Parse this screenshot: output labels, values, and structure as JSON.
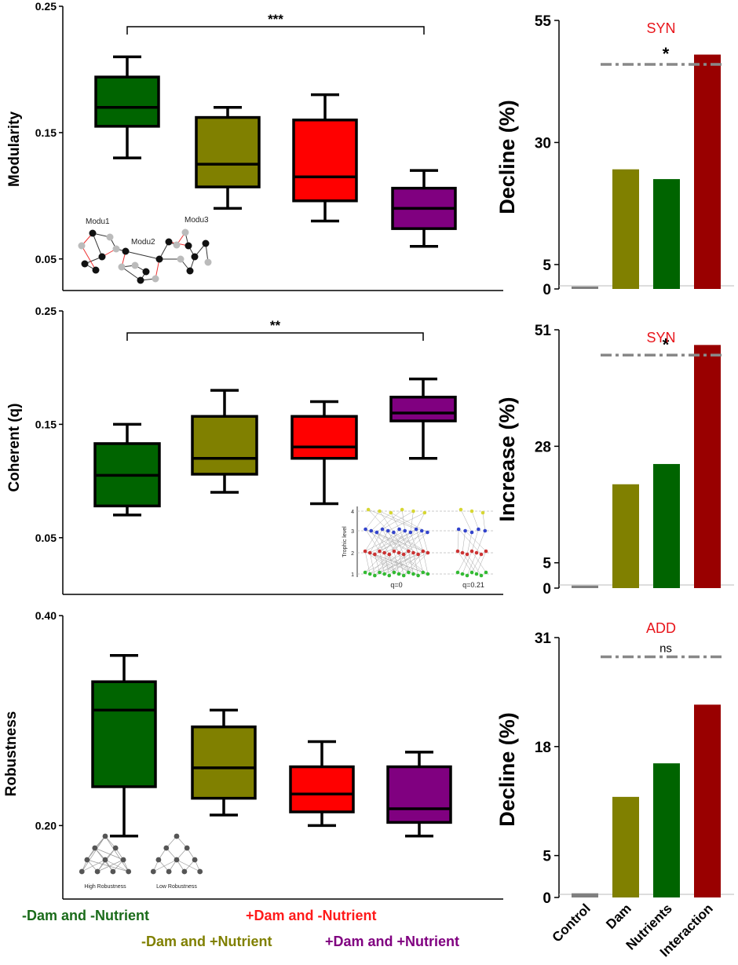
{
  "colors": {
    "control": "#006400",
    "dam": "#ff0000",
    "nutrient": "#808000",
    "interaction": "#800080",
    "bar_control": "#808080",
    "bar_dam": "#808000",
    "bar_nutrients": "#006400",
    "bar_interaction": "#990000",
    "annot_red": "#e8141a",
    "dash": "#888888"
  },
  "legend": {
    "items": [
      {
        "label": "-Dam and -Nutrient",
        "color": "#1a6b1a"
      },
      {
        "label": "+Dam and -Nutrient",
        "color": "#ff1a1a"
      },
      {
        "label": "-Dam and +Nutrient",
        "color": "#808000"
      },
      {
        "label": "+Dam and +Nutrient",
        "color": "#800080"
      }
    ]
  },
  "insets": {
    "modularity": {
      "labels": [
        "Modu1",
        "Modu2",
        "Modu3"
      ]
    },
    "coherence": {
      "ylabel": "Trophic level",
      "levels": [
        "4",
        "3",
        "2",
        "1"
      ],
      "labels": [
        "q=0",
        "q=0.21"
      ]
    },
    "robustness": {
      "labels": [
        "High Robustness",
        "Low Robustness"
      ]
    }
  },
  "chart_data": [
    {
      "type": "box",
      "ylabel": "Modularity",
      "ylim": [
        0.025,
        0.25
      ],
      "yticks": [
        "0.05",
        "0.15",
        "0.25"
      ],
      "groups": [
        {
          "name": "-Dam and -Nutrient",
          "color": "#006400",
          "min": 0.13,
          "q1": 0.155,
          "median": 0.17,
          "q3": 0.194,
          "max": 0.21
        },
        {
          "name": "-Dam and +Nutrient",
          "color": "#808000",
          "min": 0.09,
          "q1": 0.107,
          "median": 0.125,
          "q3": 0.162,
          "max": 0.17
        },
        {
          "name": "+Dam and -Nutrient",
          "color": "#ff0000",
          "min": 0.08,
          "q1": 0.096,
          "median": 0.115,
          "q3": 0.16,
          "max": 0.18
        },
        {
          "name": "+Dam and +Nutrient",
          "color": "#800080",
          "min": 0.06,
          "q1": 0.074,
          "median": 0.09,
          "q3": 0.106,
          "max": 0.12
        }
      ],
      "bracket": {
        "from": 0,
        "to": 3,
        "label": "***"
      }
    },
    {
      "type": "bar",
      "ylabel": "Decline (%)",
      "ylim": [
        0,
        55
      ],
      "yticks": [
        "0",
        "5",
        "30",
        "55"
      ],
      "categories": [
        "Control",
        "Dam",
        "Nutrients",
        "Interaction"
      ],
      "values": [
        0.5,
        24.5,
        22.5,
        48
      ],
      "annotation": "SYN",
      "significance": "*",
      "reference_line": 46
    },
    {
      "type": "box",
      "ylabel": "Coherent (q)",
      "ylim": [
        0.0,
        0.25
      ],
      "yticks": [
        "0.05",
        "0.15",
        "0.25"
      ],
      "groups": [
        {
          "name": "-Dam and -Nutrient",
          "color": "#006400",
          "min": 0.07,
          "q1": 0.078,
          "median": 0.105,
          "q3": 0.133,
          "max": 0.15
        },
        {
          "name": "-Dam and +Nutrient",
          "color": "#808000",
          "min": 0.09,
          "q1": 0.106,
          "median": 0.12,
          "q3": 0.157,
          "max": 0.18
        },
        {
          "name": "+Dam and -Nutrient",
          "color": "#ff0000",
          "min": 0.08,
          "q1": 0.12,
          "median": 0.13,
          "q3": 0.157,
          "max": 0.17
        },
        {
          "name": "+Dam and +Nutrient",
          "color": "#800080",
          "min": 0.12,
          "q1": 0.153,
          "median": 0.16,
          "q3": 0.174,
          "max": 0.19
        }
      ],
      "bracket": {
        "from": 0,
        "to": 3,
        "label": "**"
      }
    },
    {
      "type": "bar",
      "ylabel": "Increase (%)",
      "ylim": [
        0,
        51
      ],
      "yticks": [
        "0",
        "5",
        "28",
        "51"
      ],
      "categories": [
        "Control",
        "Dam",
        "Nutrients",
        "Interaction"
      ],
      "values": [
        0.5,
        20.5,
        24.5,
        48
      ],
      "annotation": "SYN",
      "significance": "*",
      "reference_line": 46
    },
    {
      "type": "box",
      "ylabel": "Robustness",
      "ylim": [
        0.13,
        0.4
      ],
      "yticks": [
        "0.20",
        "0.40"
      ],
      "groups": [
        {
          "name": "-Dam and -Nutrient",
          "color": "#006400",
          "min": 0.19,
          "q1": 0.237,
          "median": 0.31,
          "q3": 0.337,
          "max": 0.362
        },
        {
          "name": "-Dam and +Nutrient",
          "color": "#808000",
          "min": 0.21,
          "q1": 0.226,
          "median": 0.255,
          "q3": 0.294,
          "max": 0.31
        },
        {
          "name": "+Dam and -Nutrient",
          "color": "#ff0000",
          "min": 0.2,
          "q1": 0.213,
          "median": 0.23,
          "q3": 0.256,
          "max": 0.28
        },
        {
          "name": "+Dam and +Nutrient",
          "color": "#800080",
          "min": 0.19,
          "q1": 0.203,
          "median": 0.216,
          "q3": 0.256,
          "max": 0.27
        }
      ]
    },
    {
      "type": "bar",
      "ylabel": "Decline (%)",
      "ylim": [
        0,
        31
      ],
      "yticks": [
        "0",
        "5",
        "18",
        "31"
      ],
      "categories": [
        "Control",
        "Dam",
        "Nutrients",
        "Interaction"
      ],
      "values": [
        0.5,
        12,
        16,
        23
      ],
      "annotation": "ADD",
      "significance": "ns",
      "reference_line": 28.7
    }
  ]
}
